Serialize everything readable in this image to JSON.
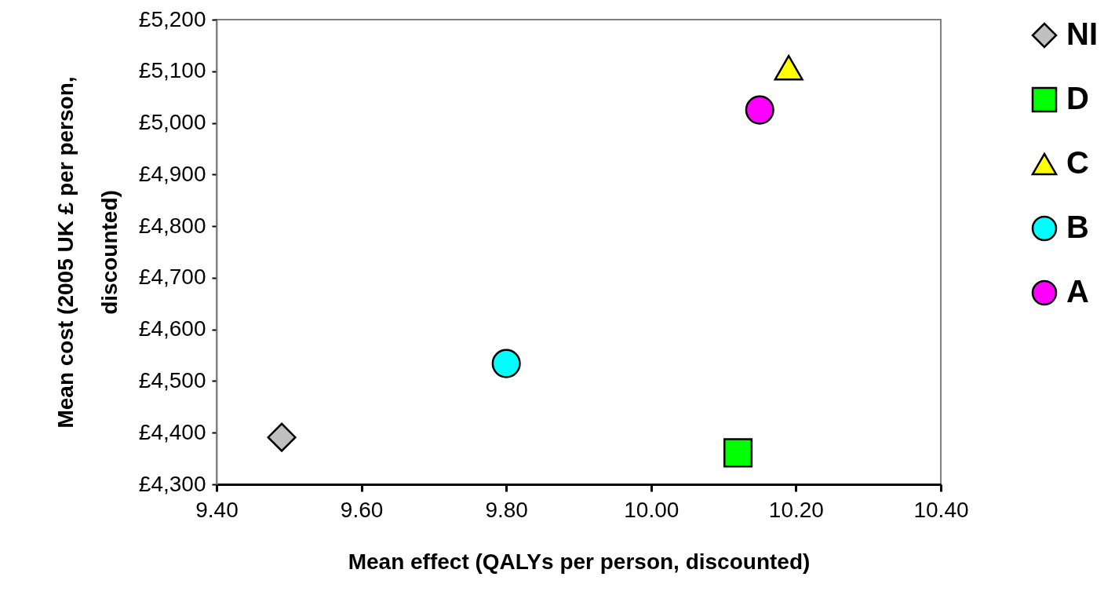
{
  "chart_data": {
    "type": "scatter",
    "xlabel": "Mean effect (QALYs per person, discounted)",
    "ylabel": "Mean cost (2005 UK £ per person, discounted)",
    "xlim": [
      9.4,
      10.4
    ],
    "xticks": [
      {
        "value": 9.4,
        "label": "9.40"
      },
      {
        "value": 9.6,
        "label": "9.60"
      },
      {
        "value": 9.8,
        "label": "9.80"
      },
      {
        "value": 10.0,
        "label": "10.00"
      },
      {
        "value": 10.2,
        "label": "10.20"
      },
      {
        "value": 10.4,
        "label": "10.40"
      }
    ],
    "ylim": [
      4300,
      5200
    ],
    "yticks": [
      {
        "value": 4300,
        "label": "£4,300"
      },
      {
        "value": 4400,
        "label": "£4,400"
      },
      {
        "value": 4500,
        "label": "£4,500"
      },
      {
        "value": 4600,
        "label": "£4,600"
      },
      {
        "value": 4700,
        "label": "£4,700"
      },
      {
        "value": 4800,
        "label": "£4,800"
      },
      {
        "value": 4900,
        "label": "£4,900"
      },
      {
        "value": 5000,
        "label": "£5,000"
      },
      {
        "value": 5100,
        "label": "£5,100"
      },
      {
        "value": 5200,
        "label": "£5,200"
      }
    ],
    "grid": false,
    "legend": "right",
    "series": [
      {
        "name": "NI",
        "color": "#c0c0c0",
        "marker": "diamond",
        "x": [
          9.49
        ],
        "values": [
          4391
        ]
      },
      {
        "name": "D",
        "color": "#00ff00",
        "marker": "square",
        "x": [
          10.12
        ],
        "values": [
          4361
        ]
      },
      {
        "name": "C",
        "color": "#ffff00",
        "marker": "triangle",
        "x": [
          10.19
        ],
        "values": [
          5107
        ]
      },
      {
        "name": "B",
        "color": "#00ffff",
        "marker": "circle",
        "x": [
          9.8
        ],
        "values": [
          4534
        ]
      },
      {
        "name": "A",
        "color": "#ff00ff",
        "marker": "circle",
        "x": [
          10.15
        ],
        "values": [
          5025
        ]
      }
    ]
  }
}
